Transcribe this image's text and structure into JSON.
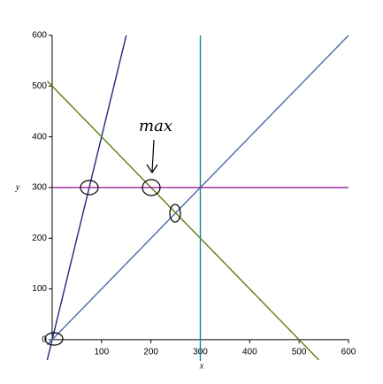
{
  "chart_data": {
    "type": "line",
    "x_label": "x",
    "y_label": "y",
    "annotation": "max",
    "xlim": [
      -10,
      600
    ],
    "ylim": [
      -42,
      600
    ],
    "xticks": [
      100,
      200,
      300,
      400,
      500,
      600
    ],
    "yticks": [
      0,
      100,
      200,
      300,
      400,
      500,
      600
    ],
    "grid": false,
    "series": [
      {
        "color": "#1f2a80",
        "x": [
          -10,
          150
        ],
        "values": [
          -40,
          600
        ]
      },
      {
        "color": "#4a6aa8",
        "x": [
          -10,
          600
        ],
        "values": [
          -10,
          600
        ]
      },
      {
        "color": "#5e7d10",
        "x": [
          -10,
          540
        ],
        "values": [
          510,
          -40
        ]
      },
      {
        "color": "#1a8a8a",
        "x": [
          300,
          300
        ],
        "values": [
          -42,
          600
        ]
      },
      {
        "color": "#9b1b9b",
        "x": [
          0,
          600
        ],
        "values": [
          300,
          300
        ]
      }
    ]
  }
}
